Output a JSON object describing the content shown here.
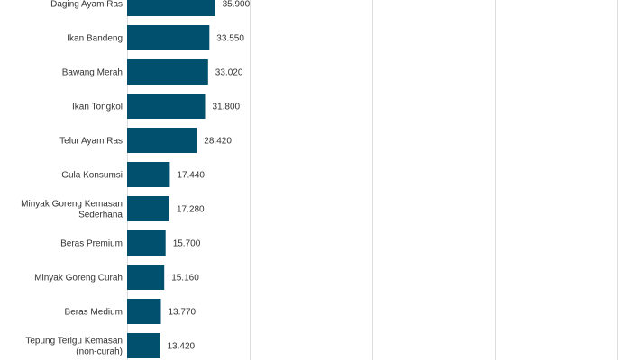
{
  "chart_data": {
    "type": "bar",
    "orientation": "horizontal",
    "categories": [
      [
        "Daging Ayam Ras"
      ],
      [
        "Ikan Bandeng"
      ],
      [
        "Bawang Merah"
      ],
      [
        "Ikan Tongkol"
      ],
      [
        "Telur Ayam Ras"
      ],
      [
        "Gula Konsumsi"
      ],
      [
        "Minyak Goreng Kemasan",
        "Sederhana"
      ],
      [
        "Beras Premium"
      ],
      [
        "Minyak Goreng Curah"
      ],
      [
        "Beras Medium"
      ],
      [
        "Tepung Terigu Kemasan",
        "(non-curah)"
      ]
    ],
    "values": [
      35900,
      33550,
      33020,
      31800,
      28420,
      17440,
      17280,
      15700,
      15160,
      13770,
      13420
    ],
    "value_labels": [
      "35.900",
      "33.550",
      "33.020",
      "31.800",
      "28.420",
      "17.440",
      "17.280",
      "15.700",
      "15.160",
      "13.770",
      "13.420"
    ],
    "xlim": [
      0,
      200000
    ],
    "grid": true,
    "title": "",
    "xlabel": "",
    "ylabel": "",
    "bar_color": "#00506e"
  }
}
